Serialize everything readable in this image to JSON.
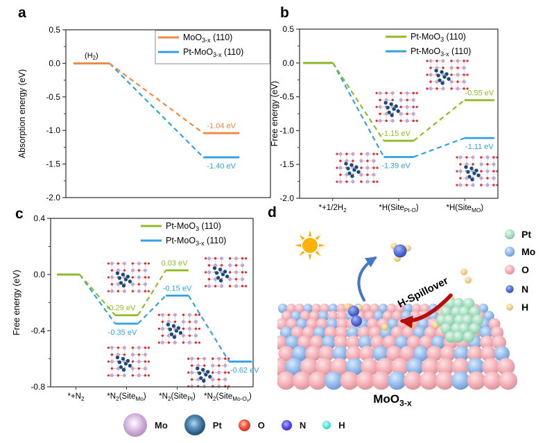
{
  "figure": {
    "panels": {
      "a": "a",
      "b": "b",
      "c": "c",
      "d": "d"
    }
  },
  "chart_data": [
    {
      "type": "line",
      "subtype": "energy-level-diagram",
      "panel": "a",
      "ylabel": "Absorption energy (eV)",
      "ylim": [
        -2.0,
        0.5
      ],
      "yticks": [
        {
          "v": 0.5,
          "t": "0.5"
        },
        {
          "v": 0.0,
          "t": "0.0"
        },
        {
          "v": -0.5,
          "t": "-0.5"
        },
        {
          "v": -1.0,
          "t": "-1.0"
        },
        {
          "v": -1.5,
          "t": "-1.5"
        },
        {
          "v": -2.0,
          "t": "-2.0"
        }
      ],
      "yminor": [
        0.25,
        -0.25,
        -0.75,
        -1.25,
        -1.75
      ],
      "categories": [
        {
          "parts": []
        },
        {
          "parts": []
        }
      ],
      "grid": false,
      "legend_frame": true,
      "legend_position": "top-right",
      "shift_first": -0.25,
      "shift_last": 0.02,
      "series": [
        {
          "name_parts": [
            {
              "t": "MoO"
            },
            {
              "t": "3-x",
              "sub": true
            },
            {
              "t": " (110)"
            }
          ],
          "color": "#F2873F",
          "values": [
            0,
            -1.04
          ],
          "point_labels": [
            null,
            {
              "text": "-1.04 eV",
              "pos": "above",
              "dx": 0
            }
          ]
        },
        {
          "name_parts": [
            {
              "t": "Pt-MoO"
            },
            {
              "t": "3-x",
              "sub": true
            },
            {
              "t": " (110)"
            }
          ],
          "color": "#2FA1E1",
          "values": [
            0,
            -1.4
          ],
          "point_labels": [
            null,
            {
              "text": "-1.40 eV",
              "pos": "below",
              "dx": 0
            }
          ]
        }
      ],
      "annotations": [
        {
          "parts": [
            {
              "t": "(H"
            },
            {
              "t": "2",
              "sub": true
            },
            {
              "t": ")"
            }
          ],
          "stage": 0,
          "pos": "above"
        }
      ],
      "insets": []
    },
    {
      "type": "line",
      "subtype": "energy-level-diagram",
      "panel": "b",
      "ylabel": "Free energy (eV)",
      "ylim": [
        -2.0,
        0.5
      ],
      "yticks": [
        {
          "v": 0.5,
          "t": "0.5"
        },
        {
          "v": 0.0,
          "t": "0.0"
        },
        {
          "v": -0.5,
          "t": "-0.5"
        },
        {
          "v": -1.0,
          "t": "-1.0"
        },
        {
          "v": -1.5,
          "t": "-1.5"
        },
        {
          "v": -2.0,
          "t": "-2.0"
        }
      ],
      "yminor": [
        0.25,
        -0.25,
        -0.75,
        -1.25,
        -1.75
      ],
      "categories": [
        {
          "parts": [
            {
              "t": "*+1/2H"
            },
            {
              "t": "2",
              "sub": true
            }
          ]
        },
        {
          "parts": [
            {
              "t": "*H(Site"
            },
            {
              "t": "Pt-O",
              "sub": true
            },
            {
              "t": ")"
            }
          ]
        },
        {
          "parts": [
            {
              "t": "*H(Site"
            },
            {
              "t": "MO",
              "sub": true
            },
            {
              "t": ")"
            }
          ]
        }
      ],
      "grid": false,
      "legend_frame": false,
      "legend_position": "top-right",
      "shift_first": -0.22,
      "shift_last": 0.22,
      "series": [
        {
          "name_parts": [
            {
              "t": "Pt-MoO"
            },
            {
              "t": "3",
              "sub": true
            },
            {
              "t": " (110)"
            }
          ],
          "color": "#8FBB21",
          "values": [
            0,
            -1.15,
            -0.55
          ],
          "point_labels": [
            null,
            {
              "text": "-1.15 eV",
              "pos": "above",
              "dx": -4
            },
            {
              "text": "-0.55 eV",
              "pos": "above",
              "dx": 0
            }
          ]
        },
        {
          "name_parts": [
            {
              "t": "Pt-MoO"
            },
            {
              "t": "3-x",
              "sub": true
            },
            {
              "t": " (110)"
            }
          ],
          "color": "#2FA1E1",
          "values": [
            0,
            -1.39,
            -1.11
          ],
          "point_labels": [
            null,
            {
              "text": "-1.39 eV",
              "pos": "below",
              "dx": -4
            },
            {
              "text": "-1.11 eV",
              "pos": "below",
              "dx": 0
            }
          ]
        }
      ],
      "annotations": [],
      "insets": [
        [
          0.29,
          0.82
        ],
        [
          0.49,
          0.46
        ],
        [
          0.745,
          0.27
        ],
        [
          0.895,
          0.84
        ]
      ]
    },
    {
      "type": "line",
      "subtype": "energy-level-diagram",
      "panel": "c",
      "ylabel": "Free energy (eV)",
      "ylim": [
        -0.8,
        0.4
      ],
      "yticks": [
        {
          "v": 0.4,
          "t": "0.4"
        },
        {
          "v": 0.0,
          "t": "0.0"
        },
        {
          "v": -0.4,
          "t": "-0.4"
        },
        {
          "v": -0.8,
          "t": "-0.8"
        }
      ],
      "yminor": [
        0.2,
        -0.2,
        -0.6
      ],
      "categories": [
        {
          "parts": [
            {
              "t": "*+N"
            },
            {
              "t": "2",
              "sub": true
            }
          ]
        },
        {
          "parts": [
            {
              "t": "*N"
            },
            {
              "t": "2",
              "sub": true
            },
            {
              "t": "(Site"
            },
            {
              "t": "Mo",
              "sub": true
            },
            {
              "t": ")"
            }
          ]
        },
        {
          "parts": [
            {
              "t": "*N"
            },
            {
              "t": "2",
              "sub": true
            },
            {
              "t": "(Site"
            },
            {
              "t": "Pt",
              "sub": true
            },
            {
              "t": ")"
            }
          ]
        },
        {
          "parts": [
            {
              "t": "*N"
            },
            {
              "t": "2",
              "sub": true
            },
            {
              "t": "(Site"
            },
            {
              "t": "Mo-O",
              "sub": true
            },
            {
              "t": "v",
              "sub2": true
            },
            {
              "t": ")"
            }
          ]
        }
      ],
      "grid": false,
      "legend_frame": false,
      "legend_position": "top-right",
      "shift_first": -0.15,
      "shift_last": 0.25,
      "series": [
        {
          "name_parts": [
            {
              "t": "Pt-MoO"
            },
            {
              "t": "3",
              "sub": true
            },
            {
              "t": " (110)"
            }
          ],
          "color": "#8FBB21",
          "values": [
            0,
            -0.29,
            0.03
          ],
          "point_labels": [
            null,
            {
              "text": "-0.29 eV",
              "pos": "above",
              "dx": -8
            },
            {
              "text": "0.03 eV",
              "pos": "above",
              "dx": -4
            }
          ]
        },
        {
          "name_parts": [
            {
              "t": "Pt-MoO"
            },
            {
              "t": "3-x",
              "sub": true
            },
            {
              "t": " (110)"
            }
          ],
          "color": "#2FA1E1",
          "values": [
            0,
            -0.35,
            -0.15,
            -0.62
          ],
          "point_labels": [
            null,
            {
              "text": "-0.35 eV",
              "pos": "below",
              "dx": -6
            },
            {
              "text": "-0.15 eV",
              "pos": "above",
              "dx": 0
            },
            {
              "text": "-0.62 eV",
              "pos": "below",
              "dx": 6
            }
          ]
        }
      ],
      "annotations": [],
      "insets": [
        [
          0.385,
          0.35
        ],
        [
          0.385,
          0.85
        ],
        [
          0.635,
          0.655
        ],
        [
          0.865,
          0.32
        ],
        [
          0.78,
          0.915
        ]
      ]
    }
  ],
  "scene_d": {
    "spillover_label": "H-Spillover",
    "surface_label_parts": [
      {
        "t": "MoO"
      },
      {
        "t": "3-x",
        "sub": true
      }
    ],
    "legend": [
      {
        "label": "Pt",
        "atom": "pt",
        "r": 7.2
      },
      {
        "label": "Mo",
        "atom": "mo",
        "r": 7.2
      },
      {
        "label": "O",
        "atom": "o",
        "r": 7.0
      },
      {
        "label": "N",
        "atom": "n",
        "r": 5.6
      },
      {
        "label": "H",
        "atom": "h",
        "r": 5.0
      }
    ],
    "colors": {
      "sun": "#FFB30A",
      "sun_rays": "#F5AE08",
      "arrow_blue": "#4576C8",
      "arrow_red": "#B80D0D",
      "o_pink": "#F3B0B6",
      "mo_blue": "#93BBEC",
      "pt_mint": "#A7DFC1",
      "h_yellow": "#F1D488",
      "n_navy": "#5570DA"
    }
  },
  "atom_legend": {
    "items": [
      {
        "label": "Mo",
        "atom": "mo",
        "size": 34
      },
      {
        "label": "Pt",
        "atom": "pt",
        "size": 30
      },
      {
        "label": "O",
        "atom": "o",
        "size": 17
      },
      {
        "label": "N",
        "atom": "n",
        "size": 15
      },
      {
        "label": "H",
        "atom": "h",
        "size": 12
      }
    ]
  }
}
